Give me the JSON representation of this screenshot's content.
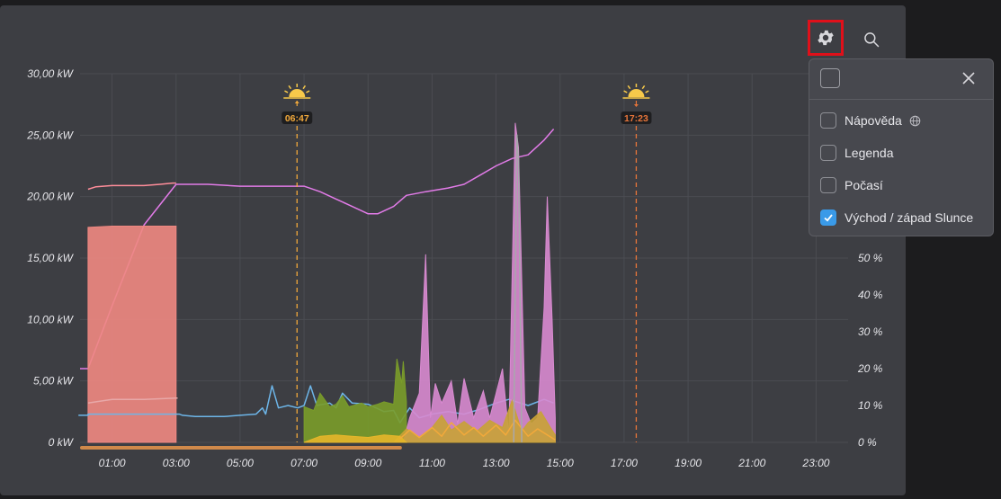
{
  "toolbar": {
    "settings_icon": "gear-icon",
    "search_icon": "search-icon",
    "settings_highlight_color": "#e0101a"
  },
  "settings_menu": {
    "items": [
      {
        "label": "Nápověda",
        "checked": false,
        "icon": "globe-icon"
      },
      {
        "label": "Legenda",
        "checked": false
      },
      {
        "label": "Počasí",
        "checked": false
      },
      {
        "label": "Východ / západ Slunce",
        "checked": true
      }
    ],
    "accent": "#3a9ae8"
  },
  "chart_data": {
    "type": "area",
    "x_unit": "hour",
    "x_ticks": [
      "01:00",
      "03:00",
      "05:00",
      "07:00",
      "09:00",
      "11:00",
      "13:00",
      "15:00",
      "17:00",
      "19:00",
      "21:00",
      "23:00"
    ],
    "x_tick_values": [
      1,
      3,
      5,
      7,
      9,
      11,
      13,
      15,
      17,
      19,
      21,
      23
    ],
    "xlim": [
      0,
      24
    ],
    "y_left": {
      "ticks": [
        "0 kW",
        "5,00 kW",
        "10,00 kW",
        "15,00 kW",
        "20,00 kW",
        "25,00 kW",
        "30,00 kW"
      ],
      "ylim": [
        0,
        30
      ]
    },
    "y_right": {
      "ticks": [
        "0 %",
        "10 %",
        "20 %",
        "30 %",
        "40 %",
        "50 %"
      ],
      "ylim": [
        0,
        100
      ]
    },
    "grid": true,
    "sun_events": [
      {
        "type": "sunrise",
        "time": "06:47",
        "hour": 6.78,
        "color": "#f2a93b"
      },
      {
        "type": "sunset",
        "time": "17:23",
        "hour": 17.38,
        "color": "#e8753a"
      }
    ],
    "series": [
      {
        "axis": "right",
        "kind": "line",
        "color": "#e27be8",
        "points": [
          [
            0,
            20
          ],
          [
            0.25,
            20
          ],
          [
            1,
            37
          ],
          [
            2,
            59
          ],
          [
            3,
            70
          ],
          [
            4,
            70
          ],
          [
            5,
            69.5
          ],
          [
            6,
            69.5
          ],
          [
            7,
            69.5
          ],
          [
            7.5,
            68
          ],
          [
            8,
            66
          ],
          [
            8.5,
            64
          ],
          [
            9,
            62
          ],
          [
            9.3,
            62
          ],
          [
            9.8,
            64
          ],
          [
            10.2,
            67
          ],
          [
            10.8,
            68
          ],
          [
            11.5,
            69
          ],
          [
            12,
            70
          ],
          [
            12.5,
            72.5
          ],
          [
            13,
            75
          ],
          [
            13.5,
            77
          ],
          [
            14,
            78
          ],
          [
            14.5,
            82
          ],
          [
            14.8,
            85
          ]
        ]
      },
      {
        "axis": "left",
        "kind": "line",
        "color": "#ff8d9a",
        "points": [
          [
            0.25,
            20.6
          ],
          [
            0.5,
            20.8
          ],
          [
            1,
            20.9
          ],
          [
            2,
            20.9
          ],
          [
            2.5,
            21
          ],
          [
            2.9,
            21.1
          ],
          [
            3,
            21.1
          ]
        ]
      },
      {
        "axis": "left",
        "kind": "area",
        "color": "#f08882",
        "points": [
          [
            0.25,
            0
          ],
          [
            0.25,
            17.5
          ],
          [
            1,
            17.6
          ],
          [
            2,
            17.6
          ],
          [
            3,
            17.6
          ],
          [
            3,
            0
          ]
        ]
      },
      {
        "axis": "left",
        "kind": "line",
        "color": "#e8a8a8",
        "points": [
          [
            0.25,
            3.2
          ],
          [
            0.5,
            3.3
          ],
          [
            1,
            3.5
          ],
          [
            2,
            3.5
          ],
          [
            3,
            3.6
          ],
          [
            3.05,
            3.6
          ]
        ]
      },
      {
        "axis": "left",
        "kind": "line",
        "color": "#6db5e8",
        "points": [
          [
            -0.05,
            2.2
          ],
          [
            0.25,
            2.2
          ],
          [
            0.25,
            2.3
          ],
          [
            3.1,
            2.3
          ],
          [
            3.2,
            2.2
          ],
          [
            3.6,
            2.1
          ],
          [
            4,
            2.1
          ],
          [
            4.5,
            2.1
          ],
          [
            5,
            2.2
          ],
          [
            5.5,
            2.3
          ],
          [
            5.7,
            2.8
          ],
          [
            5.8,
            2.3
          ],
          [
            6,
            4.6
          ],
          [
            6.2,
            2.8
          ],
          [
            6.5,
            3
          ],
          [
            6.8,
            2.8
          ],
          [
            7,
            3
          ],
          [
            7.2,
            4.6
          ],
          [
            7.4,
            3
          ],
          [
            7.8,
            3.2
          ],
          [
            8,
            2.8
          ],
          [
            8.2,
            4
          ],
          [
            8.5,
            3.2
          ],
          [
            9,
            3.1
          ],
          [
            9.5,
            2.5
          ],
          [
            9.8,
            2.6
          ],
          [
            10,
            1.6
          ],
          [
            10.3,
            2.8
          ],
          [
            10.6,
            2
          ],
          [
            11,
            2.3
          ],
          [
            11.5,
            2.5
          ],
          [
            12,
            2.3
          ],
          [
            12.5,
            2.7
          ],
          [
            13,
            3.2
          ],
          [
            13.4,
            3.5
          ],
          [
            14,
            3
          ],
          [
            14.5,
            3.5
          ],
          [
            14.8,
            3.2
          ]
        ]
      },
      {
        "axis": "left",
        "kind": "area",
        "color": "#7a9c2a",
        "points": [
          [
            7,
            0
          ],
          [
            7,
            2.9
          ],
          [
            7.3,
            2.6
          ],
          [
            7.5,
            4
          ],
          [
            7.8,
            2.9
          ],
          [
            8,
            3.1
          ],
          [
            8.2,
            3.8
          ],
          [
            8.4,
            2.9
          ],
          [
            8.8,
            3.2
          ],
          [
            9,
            2.9
          ],
          [
            9.3,
            3.1
          ],
          [
            9.5,
            3.3
          ],
          [
            9.8,
            3.1
          ],
          [
            9.9,
            6.8
          ],
          [
            10.05,
            4.8
          ],
          [
            10.1,
            6.6
          ],
          [
            10.2,
            3.3
          ],
          [
            10.2,
            0
          ]
        ]
      },
      {
        "axis": "left",
        "kind": "area",
        "color": "#d88ad0",
        "points": [
          [
            10.1,
            0
          ],
          [
            10.3,
            2
          ],
          [
            10.6,
            4
          ],
          [
            10.8,
            15.3
          ],
          [
            10.95,
            2
          ],
          [
            11.1,
            4.8
          ],
          [
            11.3,
            3.2
          ],
          [
            11.6,
            5
          ],
          [
            11.8,
            1.5
          ],
          [
            12,
            5.2
          ],
          [
            12.3,
            2
          ],
          [
            12.6,
            4.2
          ],
          [
            12.8,
            2
          ],
          [
            13.2,
            6
          ],
          [
            13.4,
            0.6
          ],
          [
            13.6,
            26
          ],
          [
            13.7,
            24
          ],
          [
            13.9,
            2.8
          ],
          [
            14.1,
            1.5
          ],
          [
            14.3,
            2
          ],
          [
            14.5,
            11
          ],
          [
            14.6,
            20
          ],
          [
            14.75,
            10
          ],
          [
            14.85,
            2
          ],
          [
            14.85,
            0
          ]
        ]
      },
      {
        "axis": "left",
        "kind": "area",
        "color": "#c8a236",
        "points": [
          [
            9.8,
            0
          ],
          [
            10.2,
            1.1
          ],
          [
            10.6,
            0.4
          ],
          [
            11,
            1.2
          ],
          [
            11.3,
            2.2
          ],
          [
            11.6,
            1
          ],
          [
            12,
            1.7
          ],
          [
            12.4,
            0.9
          ],
          [
            12.8,
            1.8
          ],
          [
            13.2,
            1.2
          ],
          [
            13.5,
            3.4
          ],
          [
            13.8,
            0.9
          ],
          [
            14,
            1.6
          ],
          [
            14.4,
            2.5
          ],
          [
            14.7,
            1.2
          ],
          [
            14.85,
            0.6
          ],
          [
            14.85,
            0
          ]
        ]
      },
      {
        "axis": "left",
        "kind": "area",
        "color": "#e6b62a",
        "points": [
          [
            7,
            0
          ],
          [
            7.5,
            0.5
          ],
          [
            8,
            0.6
          ],
          [
            8.5,
            0.5
          ],
          [
            9,
            0.4
          ],
          [
            9.5,
            0.6
          ],
          [
            10,
            0.5
          ],
          [
            10.2,
            0
          ]
        ]
      },
      {
        "axis": "left",
        "kind": "line",
        "color": "#f2a93b",
        "points": [
          [
            10,
            0.3
          ],
          [
            10.3,
            1
          ],
          [
            10.6,
            0.4
          ],
          [
            11,
            1.2
          ],
          [
            11.3,
            0.5
          ],
          [
            11.6,
            1.6
          ],
          [
            12,
            0.6
          ],
          [
            12.3,
            1.2
          ],
          [
            12.6,
            0.5
          ],
          [
            13,
            1.4
          ],
          [
            13.3,
            0.6
          ],
          [
            13.6,
            1.8
          ],
          [
            14,
            0.5
          ],
          [
            14.3,
            1.1
          ],
          [
            14.6,
            0.6
          ],
          [
            14.85,
            0.2
          ]
        ]
      },
      {
        "axis": "left",
        "kind": "line",
        "color": "#a8a8ac",
        "points": [
          [
            13.55,
            0
          ],
          [
            13.65,
            25
          ],
          [
            13.7,
            23
          ],
          [
            13.8,
            0
          ]
        ]
      }
    ],
    "range_bar": {
      "color": "#d0894a",
      "from": 0,
      "to": 10
    }
  }
}
